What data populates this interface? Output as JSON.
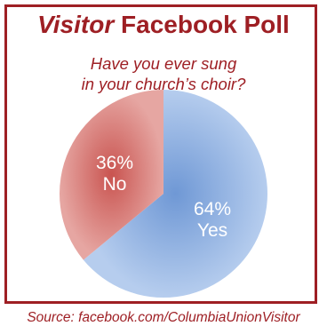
{
  "header": {
    "title_emphasis": "Visitor",
    "title_rest": " Facebook Poll",
    "question_line1": "Have you ever sung",
    "question_line2": "in your church’s choir?"
  },
  "footer": {
    "source": "Source: facebook.com/ColumbiaUnionVisitor"
  },
  "colors": {
    "frame": "#9e1f24",
    "title": "#9e1f24",
    "subtitle": "#9e1f24",
    "source": "#9e1f24",
    "yes_fill": "#6f98d5",
    "yes_edge": "#b6cdee",
    "no_fill": "#c95450",
    "no_edge": "#e6a6a2",
    "slice_text": "#ffffff"
  },
  "chart_data": {
    "type": "pie",
    "title": "",
    "slices": [
      {
        "label": "Yes",
        "value": 64,
        "value_label": "64%"
      },
      {
        "label": "No",
        "value": 36,
        "value_label": "36%"
      }
    ]
  }
}
